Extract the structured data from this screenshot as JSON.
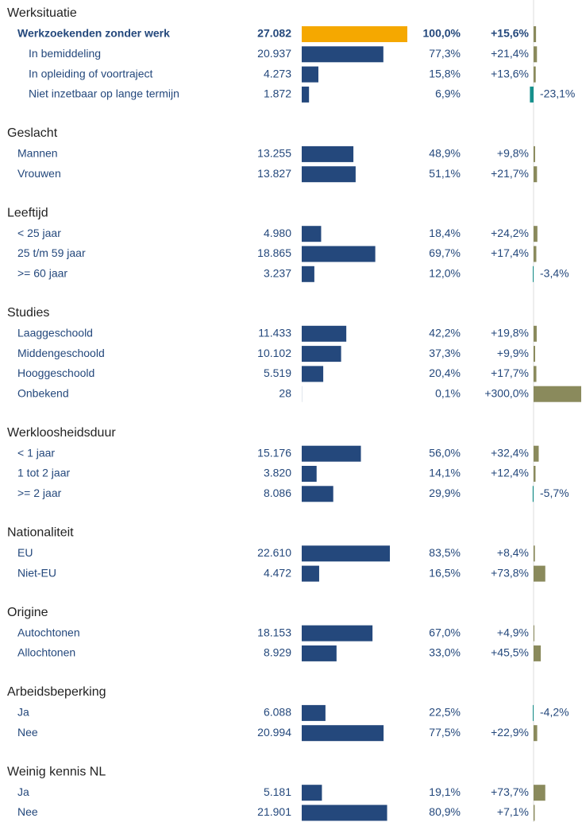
{
  "colors": {
    "bar": "#24487c",
    "highlight": "#f5a800",
    "positive": "#8a8a5c",
    "negative": "#16908c"
  },
  "sections": [
    {
      "title": "Werksituatie",
      "rows": [
        {
          "label": "Werkzoekenden zonder werk",
          "count": 27082,
          "count_label": "27.082",
          "share": 100.0,
          "share_label": "100,0%",
          "change": 15.6,
          "change_label": "+15,6%"
        },
        {
          "label": "In bemiddeling",
          "count": 20937,
          "count_label": "20.937",
          "share": 77.3,
          "share_label": "77,3%",
          "change": 21.4,
          "change_label": "+21,4%"
        },
        {
          "label": "In opleiding of voortraject",
          "count": 4273,
          "count_label": "4.273",
          "share": 15.8,
          "share_label": "15,8%",
          "change": 13.6,
          "change_label": "+13,6%"
        },
        {
          "label": "Niet inzetbaar op lange termijn",
          "count": 1872,
          "count_label": "1.872",
          "share": 6.9,
          "share_label": "6,9%",
          "change": -23.1,
          "change_label": "-23,1%"
        }
      ]
    },
    {
      "title": "Geslacht",
      "rows": [
        {
          "label": "Mannen",
          "count": 13255,
          "count_label": "13.255",
          "share": 48.9,
          "share_label": "48,9%",
          "change": 9.8,
          "change_label": "+9,8%"
        },
        {
          "label": "Vrouwen",
          "count": 13827,
          "count_label": "13.827",
          "share": 51.1,
          "share_label": "51,1%",
          "change": 21.7,
          "change_label": "+21,7%"
        }
      ]
    },
    {
      "title": "Leeftijd",
      "rows": [
        {
          "label": "< 25 jaar",
          "count": 4980,
          "count_label": "4.980",
          "share": 18.4,
          "share_label": "18,4%",
          "change": 24.2,
          "change_label": "+24,2%"
        },
        {
          "label": "25 t/m 59 jaar",
          "count": 18865,
          "count_label": "18.865",
          "share": 69.7,
          "share_label": "69,7%",
          "change": 17.4,
          "change_label": "+17,4%"
        },
        {
          "label": ">= 60 jaar",
          "count": 3237,
          "count_label": "3.237",
          "share": 12.0,
          "share_label": "12,0%",
          "change": -3.4,
          "change_label": "-3,4%"
        }
      ]
    },
    {
      "title": "Studies",
      "rows": [
        {
          "label": "Laaggeschoold",
          "count": 11433,
          "count_label": "11.433",
          "share": 42.2,
          "share_label": "42,2%",
          "change": 19.8,
          "change_label": "+19,8%"
        },
        {
          "label": "Middengeschoold",
          "count": 10102,
          "count_label": "10.102",
          "share": 37.3,
          "share_label": "37,3%",
          "change": 9.9,
          "change_label": "+9,9%"
        },
        {
          "label": "Hooggeschoold",
          "count": 5519,
          "count_label": "5.519",
          "share": 20.4,
          "share_label": "20,4%",
          "change": 17.7,
          "change_label": "+17,7%"
        },
        {
          "label": "Onbekend",
          "count": 28,
          "count_label": "28",
          "share": 0.1,
          "share_label": "0,1%",
          "change": 300.0,
          "change_label": "+300,0%"
        }
      ]
    },
    {
      "title": "Werkloosheidsduur",
      "rows": [
        {
          "label": "< 1 jaar",
          "count": 15176,
          "count_label": "15.176",
          "share": 56.0,
          "share_label": "56,0%",
          "change": 32.4,
          "change_label": "+32,4%"
        },
        {
          "label": "1 tot 2 jaar",
          "count": 3820,
          "count_label": "3.820",
          "share": 14.1,
          "share_label": "14,1%",
          "change": 12.4,
          "change_label": "+12,4%"
        },
        {
          "label": ">= 2 jaar",
          "count": 8086,
          "count_label": "8.086",
          "share": 29.9,
          "share_label": "29,9%",
          "change": -5.7,
          "change_label": "-5,7%"
        }
      ]
    },
    {
      "title": "Nationaliteit",
      "rows": [
        {
          "label": "EU",
          "count": 22610,
          "count_label": "22.610",
          "share": 83.5,
          "share_label": "83,5%",
          "change": 8.4,
          "change_label": "+8,4%"
        },
        {
          "label": "Niet-EU",
          "count": 4472,
          "count_label": "4.472",
          "share": 16.5,
          "share_label": "16,5%",
          "change": 73.8,
          "change_label": "+73,8%"
        }
      ]
    },
    {
      "title": "Origine",
      "rows": [
        {
          "label": "Autochtonen",
          "count": 18153,
          "count_label": "18.153",
          "share": 67.0,
          "share_label": "67,0%",
          "change": 4.9,
          "change_label": "+4,9%"
        },
        {
          "label": "Allochtonen",
          "count": 8929,
          "count_label": "8.929",
          "share": 33.0,
          "share_label": "33,0%",
          "change": 45.5,
          "change_label": "+45,5%"
        }
      ]
    },
    {
      "title": "Arbeidsbeperking",
      "rows": [
        {
          "label": "Ja",
          "count": 6088,
          "count_label": "6.088",
          "share": 22.5,
          "share_label": "22,5%",
          "change": -4.2,
          "change_label": "-4,2%"
        },
        {
          "label": "Nee",
          "count": 20994,
          "count_label": "20.994",
          "share": 77.5,
          "share_label": "77,5%",
          "change": 22.9,
          "change_label": "+22,9%"
        }
      ]
    },
    {
      "title": "Weinig kennis NL",
      "rows": [
        {
          "label": "Ja",
          "count": 5181,
          "count_label": "5.181",
          "share": 19.1,
          "share_label": "19,1%",
          "change": 73.7,
          "change_label": "+73,7%"
        },
        {
          "label": "Nee",
          "count": 21901,
          "count_label": "21.901",
          "share": 80.9,
          "share_label": "80,9%",
          "change": 7.1,
          "change_label": "+7,1%"
        }
      ]
    }
  ]
}
